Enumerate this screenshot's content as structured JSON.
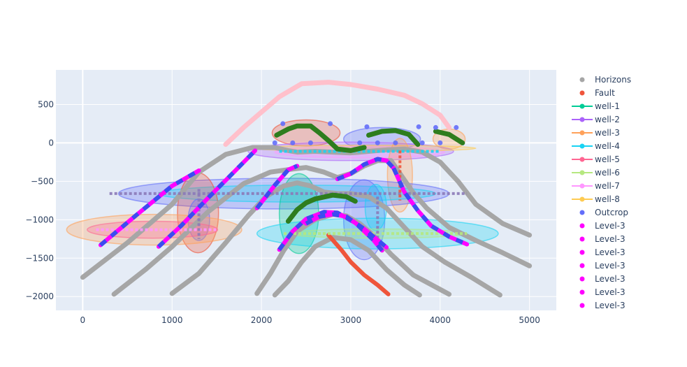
{
  "chart_data": {
    "type": "scatter",
    "xlim": [
      -300,
      5300
    ],
    "ylim": [
      -2180,
      950
    ],
    "x_ticks": [
      0,
      1000,
      2000,
      3000,
      4000,
      5000
    ],
    "y_ticks": [
      500,
      0,
      -500,
      -1000,
      -1500,
      -2000
    ],
    "x_tick_labels": [
      "0",
      "1000",
      "2000",
      "3000",
      "4000",
      "5000"
    ],
    "y_tick_labels": [
      "500",
      "0",
      "−500",
      "−1000",
      "−1500",
      "−2000"
    ],
    "grid": true,
    "legend_position": "right",
    "legend": [
      {
        "name": "Horizons",
        "color": "#a6a6a6",
        "mode": "markers"
      },
      {
        "name": "Fault",
        "color": "#ef553b",
        "mode": "markers"
      },
      {
        "name": "well-1",
        "color": "#00cc96",
        "mode": "lines+markers"
      },
      {
        "name": "well-2",
        "color": "#ab63fa",
        "mode": "lines+markers"
      },
      {
        "name": "well-3",
        "color": "#ffa15a",
        "mode": "lines+markers"
      },
      {
        "name": "well-4",
        "color": "#19d3f3",
        "mode": "lines+markers"
      },
      {
        "name": "well-5",
        "color": "#ff6692",
        "mode": "lines+markers"
      },
      {
        "name": "well-6",
        "color": "#b6e880",
        "mode": "lines+markers"
      },
      {
        "name": "well-7",
        "color": "#ff97ff",
        "mode": "lines+markers"
      },
      {
        "name": "well-8",
        "color": "#fecb52",
        "mode": "lines+markers"
      },
      {
        "name": "Outcrop",
        "color": "#636efa",
        "mode": "markers"
      },
      {
        "name": "Level-3",
        "color": "#ff00ff",
        "mode": "markers"
      },
      {
        "name": "Level-3",
        "color": "#ff00ff",
        "mode": "markers"
      },
      {
        "name": "Level-3",
        "color": "#ff00ff",
        "mode": "markers"
      },
      {
        "name": "Level-3",
        "color": "#ff00ff",
        "mode": "markers"
      },
      {
        "name": "Level-3",
        "color": "#ff00ff",
        "mode": "markers"
      },
      {
        "name": "Level-3",
        "color": "#ff00ff",
        "mode": "markers"
      },
      {
        "name": "Level-3",
        "color": "#ff00ff",
        "mode": "markers"
      }
    ],
    "horizons": [
      {
        "color": "#a6a6a6",
        "points": [
          [
            0,
            -1750
          ],
          [
            500,
            -1300
          ],
          [
            1000,
            -800
          ],
          [
            1300,
            -380
          ],
          [
            1600,
            -150
          ],
          [
            1900,
            -60
          ],
          [
            2150,
            -60
          ],
          [
            2300,
            -100
          ],
          [
            2400,
            -120
          ],
          [
            2600,
            -110
          ],
          [
            2800,
            -120
          ],
          [
            3000,
            -130
          ],
          [
            3200,
            -110
          ],
          [
            3400,
            -90
          ],
          [
            3600,
            -80
          ],
          [
            3800,
            -120
          ],
          [
            4000,
            -250
          ],
          [
            4200,
            -500
          ],
          [
            4400,
            -800
          ],
          [
            4700,
            -1050
          ],
          [
            5000,
            -1200
          ]
        ]
      },
      {
        "color": "#a6a6a6",
        "points": [
          [
            350,
            -1970
          ],
          [
            700,
            -1650
          ],
          [
            1000,
            -1350
          ],
          [
            1400,
            -900
          ],
          [
            1800,
            -530
          ],
          [
            2100,
            -380
          ],
          [
            2350,
            -340
          ],
          [
            2500,
            -320
          ],
          [
            2700,
            -380
          ],
          [
            2850,
            -450
          ],
          [
            3000,
            -400
          ],
          [
            3150,
            -300
          ],
          [
            3300,
            -230
          ],
          [
            3450,
            -230
          ],
          [
            3550,
            -400
          ],
          [
            3700,
            -650
          ],
          [
            3850,
            -850
          ],
          [
            4100,
            -1100
          ],
          [
            4400,
            -1270
          ],
          [
            4700,
            -1430
          ],
          [
            5000,
            -1600
          ]
        ]
      },
      {
        "color": "#a6a6a6",
        "points": [
          [
            1000,
            -1960
          ],
          [
            1300,
            -1700
          ],
          [
            1600,
            -1300
          ],
          [
            1850,
            -950
          ],
          [
            2050,
            -700
          ],
          [
            2250,
            -560
          ],
          [
            2400,
            -520
          ],
          [
            2550,
            -560
          ],
          [
            2700,
            -640
          ],
          [
            2850,
            -660
          ],
          [
            3000,
            -660
          ],
          [
            3200,
            -700
          ],
          [
            3400,
            -850
          ],
          [
            3600,
            -1100
          ],
          [
            3800,
            -1350
          ],
          [
            4050,
            -1550
          ],
          [
            4350,
            -1750
          ],
          [
            4670,
            -1980
          ]
        ]
      },
      {
        "color": "#a6a6a6",
        "points": [
          [
            1950,
            -1960
          ],
          [
            2100,
            -1700
          ],
          [
            2250,
            -1400
          ],
          [
            2400,
            -1150
          ],
          [
            2600,
            -1000
          ],
          [
            2800,
            -930
          ],
          [
            2950,
            -950
          ],
          [
            3100,
            -1050
          ],
          [
            3250,
            -1200
          ],
          [
            3450,
            -1450
          ],
          [
            3700,
            -1720
          ],
          [
            4100,
            -1970
          ]
        ]
      },
      {
        "color": "#a6a6a6",
        "points": [
          [
            2150,
            -1980
          ],
          [
            2300,
            -1800
          ],
          [
            2450,
            -1550
          ],
          [
            2600,
            -1350
          ],
          [
            2800,
            -1230
          ],
          [
            3000,
            -1260
          ],
          [
            3200,
            -1400
          ],
          [
            3400,
            -1650
          ],
          [
            3600,
            -1850
          ],
          [
            3770,
            -1980
          ]
        ]
      }
    ],
    "fault": {
      "color": "#ef553b",
      "points": [
        [
          2750,
          -1200
        ],
        [
          2900,
          -1400
        ],
        [
          3000,
          -1550
        ],
        [
          3150,
          -1720
        ],
        [
          3300,
          -1850
        ],
        [
          3420,
          -1970
        ]
      ]
    },
    "pink_curve": {
      "color": "#ffc0cb",
      "points": [
        [
          1600,
          -20
        ],
        [
          1800,
          200
        ],
        [
          2000,
          400
        ],
        [
          2200,
          600
        ],
        [
          2450,
          770
        ],
        [
          2750,
          790
        ],
        [
          3000,
          760
        ],
        [
          3300,
          700
        ],
        [
          3600,
          620
        ],
        [
          3800,
          510
        ],
        [
          4000,
          360
        ],
        [
          4100,
          200
        ]
      ]
    },
    "green_segments": [
      [
        [
          2170,
          100
        ],
        [
          2300,
          180
        ],
        [
          2400,
          220
        ],
        [
          2550,
          220
        ],
        [
          2650,
          130
        ],
        [
          2750,
          30
        ],
        [
          2850,
          -80
        ],
        [
          3000,
          -100
        ],
        [
          3150,
          -60
        ]
      ],
      [
        [
          3200,
          100
        ],
        [
          3350,
          150
        ],
        [
          3500,
          160
        ],
        [
          3650,
          110
        ],
        [
          3750,
          -20
        ]
      ],
      [
        [
          3950,
          150
        ],
        [
          4100,
          110
        ],
        [
          4250,
          0
        ]
      ],
      [
        [
          2300,
          -1020
        ],
        [
          2400,
          -870
        ],
        [
          2500,
          -780
        ],
        [
          2600,
          -730
        ],
        [
          2800,
          -680
        ],
        [
          2950,
          -700
        ],
        [
          3050,
          -760
        ]
      ]
    ],
    "magenta_blue_segments": [
      [
        [
          200,
          -1330
        ],
        [
          600,
          -940
        ],
        [
          1000,
          -560
        ],
        [
          1300,
          -360
        ]
      ],
      [
        [
          850,
          -1350
        ],
        [
          1100,
          -1080
        ],
        [
          1400,
          -720
        ],
        [
          1700,
          -370
        ],
        [
          1930,
          -100
        ]
      ],
      [
        [
          1950,
          -850
        ],
        [
          2150,
          -550
        ],
        [
          2300,
          -350
        ],
        [
          2400,
          -300
        ]
      ],
      [
        [
          2200,
          -1390
        ],
        [
          2350,
          -1150
        ],
        [
          2500,
          -990
        ],
        [
          2700,
          -900
        ],
        [
          2850,
          -910
        ],
        [
          3050,
          -1040
        ],
        [
          3250,
          -1260
        ],
        [
          3350,
          -1400
        ]
      ],
      [
        [
          2850,
          -470
        ],
        [
          3000,
          -400
        ],
        [
          3150,
          -280
        ],
        [
          3300,
          -210
        ],
        [
          3400,
          -230
        ],
        [
          3480,
          -330
        ]
      ],
      [
        [
          3480,
          -330
        ],
        [
          3600,
          -640
        ],
        [
          3750,
          -880
        ],
        [
          3900,
          -1080
        ],
        [
          4100,
          -1220
        ],
        [
          4300,
          -1320
        ]
      ],
      [
        [
          2500,
          -1050
        ],
        [
          2650,
          -960
        ],
        [
          2800,
          -930
        ],
        [
          2950,
          -960
        ],
        [
          3150,
          -1120
        ],
        [
          3400,
          -1360
        ]
      ]
    ],
    "ellipses": [
      {
        "cx": 2500,
        "cy": 130,
        "rx": 380,
        "ry": 170,
        "color": "#ef553b"
      },
      {
        "cx": 3350,
        "cy": 50,
        "rx": 430,
        "ry": 150,
        "color": "#636efa"
      },
      {
        "cx": 4100,
        "cy": 50,
        "rx": 180,
        "ry": 130,
        "color": "#ffa15a"
      },
      {
        "cx": 3000,
        "cy": -110,
        "rx": 1150,
        "ry": 120,
        "color": "#ab63fa"
      },
      {
        "cx": 3100,
        "cy": -120,
        "rx": 950,
        "ry": 75,
        "color": "#ff97ff"
      },
      {
        "cx": 3150,
        "cy": -70,
        "rx": 1250,
        "ry": 40,
        "color": "#fecb52"
      },
      {
        "cx": 3550,
        "cy": -420,
        "rx": 140,
        "ry": 480,
        "color": "#ffa15a"
      },
      {
        "cx": 2250,
        "cy": -660,
        "rx": 1850,
        "ry": 200,
        "color": "#636efa"
      },
      {
        "cx": 2400,
        "cy": -660,
        "rx": 1550,
        "ry": 110,
        "color": "#19d3f3"
      },
      {
        "cx": 1290,
        "cy": -910,
        "rx": 230,
        "ry": 520,
        "color": "#ef553b"
      },
      {
        "cx": 1300,
        "cy": -1000,
        "rx": 120,
        "ry": 270,
        "color": "#636efa"
      },
      {
        "cx": 800,
        "cy": -1130,
        "rx": 980,
        "ry": 200,
        "color": "#ffa15a"
      },
      {
        "cx": 780,
        "cy": -1130,
        "rx": 730,
        "ry": 110,
        "color": "#ff6692"
      },
      {
        "cx": 2420,
        "cy": -920,
        "rx": 220,
        "ry": 520,
        "color": "#00cc96"
      },
      {
        "cx": 3150,
        "cy": -1000,
        "rx": 230,
        "ry": 520,
        "color": "#636efa"
      },
      {
        "cx": 3280,
        "cy": -840,
        "rx": 120,
        "ry": 300,
        "color": "#19d3f3"
      },
      {
        "cx": 3300,
        "cy": -1180,
        "rx": 1350,
        "ry": 200,
        "color": "#19d3f3"
      },
      {
        "cx": 3300,
        "cy": -1180,
        "rx": 1000,
        "ry": 60,
        "color": "#b6e880"
      }
    ],
    "well_axes": [
      {
        "color": "#8b7ab8",
        "points": [
          [
            300,
            -660
          ],
          [
            4300,
            -660
          ]
        ]
      },
      {
        "color": "#ff97ff",
        "points": [
          [
            150,
            -1130
          ],
          [
            1500,
            -1130
          ]
        ]
      },
      {
        "color": "#b6e880",
        "points": [
          [
            2250,
            -1180
          ],
          [
            4300,
            -1180
          ]
        ]
      },
      {
        "color": "#19d3f3",
        "points": [
          [
            2200,
            -110
          ],
          [
            4000,
            -110
          ]
        ]
      },
      {
        "color": "#8b7ab8",
        "points": [
          [
            1300,
            -600
          ],
          [
            1300,
            -1250
          ]
        ]
      },
      {
        "color": "#8b7ab8",
        "points": [
          [
            3300,
            -700
          ],
          [
            3300,
            -1300
          ]
        ]
      },
      {
        "color": "#ef553b",
        "points": [
          [
            3550,
            -100
          ],
          [
            3550,
            -750
          ]
        ]
      }
    ],
    "outcrop_points": [
      [
        2240,
        250
      ],
      [
        2770,
        250
      ],
      [
        3180,
        210
      ],
      [
        3760,
        210
      ],
      [
        3950,
        200
      ],
      [
        4180,
        200
      ],
      [
        2150,
        0
      ],
      [
        2350,
        0
      ],
      [
        2550,
        0
      ],
      [
        3100,
        0
      ],
      [
        3300,
        0
      ],
      [
        3500,
        0
      ],
      [
        3800,
        0
      ],
      [
        4000,
        0
      ]
    ]
  }
}
